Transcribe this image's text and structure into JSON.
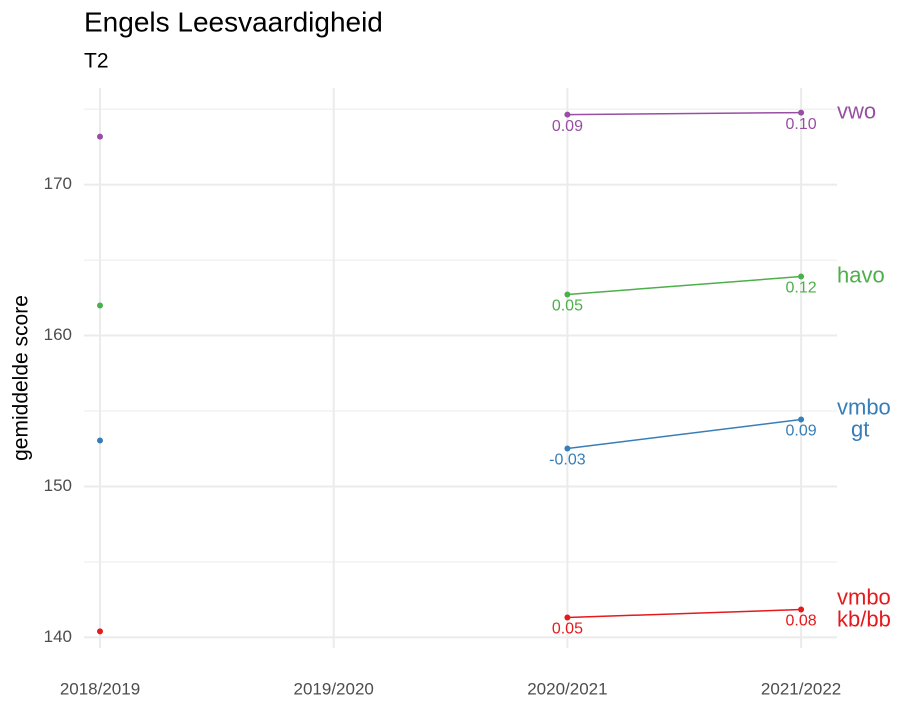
{
  "chart_data": {
    "type": "line",
    "title": "Engels Leesvaardigheid",
    "subtitle": "T2",
    "y_label": "gemiddelde score",
    "categories": [
      "2018/2019",
      "2019/2020",
      "2020/2021",
      "2021/2022"
    ],
    "series": [
      {
        "name": "vwo",
        "color": "#984ea3",
        "values": [
          173.18,
          null,
          174.64,
          174.77
        ],
        "labels": [
          null,
          null,
          "0.09",
          "0.10"
        ]
      },
      {
        "name": "havo",
        "color": "#4daf4a",
        "values": [
          161.99,
          null,
          162.72,
          163.91
        ],
        "labels": [
          null,
          null,
          "0.05",
          "0.12"
        ]
      },
      {
        "name": "vmbo\ngt",
        "color": "#377eb8",
        "values": [
          153.05,
          null,
          152.52,
          154.44
        ],
        "labels": [
          null,
          null,
          "-0.03",
          "0.09"
        ]
      },
      {
        "name": "vmbo\nkb/bb",
        "color": "#e41a1c",
        "values": [
          140.4,
          null,
          141.32,
          141.85
        ],
        "labels": [
          null,
          null,
          "0.05",
          "0.08"
        ]
      }
    ],
    "ylim": [
      139.3,
      176.4
    ],
    "yticks": [
      140,
      150,
      160,
      170
    ],
    "minor_yticks": [
      145,
      155,
      165,
      175
    ],
    "grid": true
  }
}
